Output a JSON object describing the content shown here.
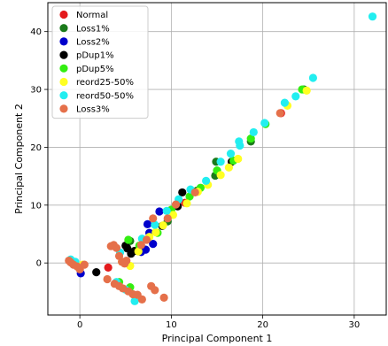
{
  "chart_data": {
    "type": "scatter",
    "xlabel": "Principal Component 1",
    "ylabel": "Principal Component 2",
    "xlim": [
      -3.5,
      33.5
    ],
    "ylim": [
      -9,
      45
    ],
    "xticks": [
      "0",
      "10",
      "20",
      "30"
    ],
    "yticks": [
      "0",
      "10",
      "20",
      "30",
      "40"
    ],
    "grid": true,
    "legend_position": "top-left",
    "series": [
      {
        "name": "Normal",
        "color": "#e41a1c",
        "points": [
          [
            3.1,
            -0.8
          ],
          [
            22.0,
            25.9
          ],
          [
            11.5,
            10.4
          ]
        ]
      },
      {
        "name": "Loss1%",
        "color": "#1a7a1a",
        "points": [
          [
            5.5,
            3.8
          ],
          [
            14.9,
            17.5
          ],
          [
            12.8,
            12.5
          ],
          [
            18.7,
            21.0
          ],
          [
            24.5,
            30.0
          ],
          [
            5.1,
            3.0
          ],
          [
            14.8,
            15.1
          ],
          [
            9.6,
            7.2
          ]
        ]
      },
      {
        "name": "Loss2%",
        "color": "#0000cc",
        "points": [
          [
            8.0,
            3.3
          ],
          [
            7.4,
            6.7
          ],
          [
            8.7,
            8.9
          ],
          [
            6.7,
            1.9
          ],
          [
            7.2,
            2.3
          ],
          [
            0.1,
            -1.8
          ],
          [
            7.6,
            5.2
          ]
        ]
      },
      {
        "name": "pDup1%",
        "color": "#000000",
        "points": [
          [
            5.0,
            3.0
          ],
          [
            6.0,
            2.1
          ],
          [
            11.2,
            12.2
          ],
          [
            16.6,
            17.5
          ],
          [
            1.8,
            -1.6
          ],
          [
            5.6,
            1.6
          ],
          [
            10.7,
            9.8
          ],
          [
            9.0,
            6.4
          ],
          [
            5.2,
            2.5
          ]
        ]
      },
      {
        "name": "pDup5%",
        "color": "#33ee11",
        "points": [
          [
            5.3,
            4.0
          ],
          [
            5.5,
            -4.2
          ],
          [
            15.0,
            16.0
          ],
          [
            18.7,
            21.5
          ],
          [
            20.3,
            24.0
          ],
          [
            24.3,
            30.0
          ],
          [
            10.0,
            9.2
          ],
          [
            12.0,
            11.5
          ],
          [
            6.5,
            3.0
          ],
          [
            8.5,
            5.2
          ],
          [
            13.2,
            13.0
          ],
          [
            16.8,
            17.7
          ],
          [
            4.3,
            -3.3
          ]
        ]
      },
      {
        "name": "reord25-50%",
        "color": "#ffff22",
        "points": [
          [
            5.5,
            -0.5
          ],
          [
            4.6,
            0.2
          ],
          [
            6.4,
            2.0
          ],
          [
            7.6,
            4.5
          ],
          [
            8.3,
            5.3
          ],
          [
            9.1,
            6.5
          ],
          [
            10.2,
            8.3
          ],
          [
            11.7,
            10.3
          ],
          [
            12.9,
            12.3
          ],
          [
            14.0,
            13.5
          ],
          [
            15.4,
            15.2
          ],
          [
            16.3,
            16.5
          ],
          [
            17.3,
            18.0
          ],
          [
            22.7,
            27.2
          ],
          [
            24.8,
            29.8
          ],
          [
            0.3,
            -0.3
          ]
        ]
      },
      {
        "name": "reord50-50%",
        "color": "#22eef0",
        "points": [
          [
            32.0,
            42.6
          ],
          [
            25.5,
            32.0
          ],
          [
            23.6,
            28.8
          ],
          [
            22.4,
            27.7
          ],
          [
            20.2,
            24.2
          ],
          [
            19.0,
            22.6
          ],
          [
            17.5,
            20.3
          ],
          [
            17.4,
            21.0
          ],
          [
            16.5,
            18.9
          ],
          [
            15.4,
            17.5
          ],
          [
            13.8,
            14.2
          ],
          [
            12.1,
            12.7
          ],
          [
            10.8,
            11.0
          ],
          [
            9.5,
            9.0
          ],
          [
            8.2,
            6.6
          ],
          [
            6.8,
            4.2
          ],
          [
            4.4,
            1.8
          ],
          [
            -1.0,
            0.6
          ],
          [
            -0.5,
            0.2
          ],
          [
            6.0,
            -6.6
          ],
          [
            4.0,
            -3.3
          ],
          [
            5.0,
            -4.6
          ]
        ]
      },
      {
        "name": "Loss3%",
        "color": "#e5704a",
        "points": [
          [
            -1.2,
            0.4
          ],
          [
            -1.0,
            0.1
          ],
          [
            -0.7,
            -0.3
          ],
          [
            -0.3,
            -0.6
          ],
          [
            0.0,
            -1.1
          ],
          [
            0.5,
            -0.3
          ],
          [
            3.0,
            -2.8
          ],
          [
            3.4,
            2.9
          ],
          [
            3.7,
            3.1
          ],
          [
            4.0,
            2.6
          ],
          [
            4.3,
            1.2
          ],
          [
            4.6,
            0.2
          ],
          [
            4.9,
            -0.1
          ],
          [
            3.8,
            -3.6
          ],
          [
            4.3,
            -4.0
          ],
          [
            4.7,
            -4.4
          ],
          [
            5.3,
            -4.9
          ],
          [
            5.8,
            -5.4
          ],
          [
            6.3,
            -5.5
          ],
          [
            6.8,
            -6.3
          ],
          [
            7.8,
            -4.0
          ],
          [
            8.2,
            -4.7
          ],
          [
            9.2,
            -6.0
          ],
          [
            6.7,
            3.1
          ],
          [
            7.3,
            4.0
          ],
          [
            8.0,
            7.7
          ],
          [
            9.6,
            7.7
          ],
          [
            10.5,
            10.1
          ],
          [
            12.6,
            12.2
          ],
          [
            21.9,
            25.9
          ],
          [
            5.1,
            0.4
          ]
        ]
      }
    ]
  }
}
